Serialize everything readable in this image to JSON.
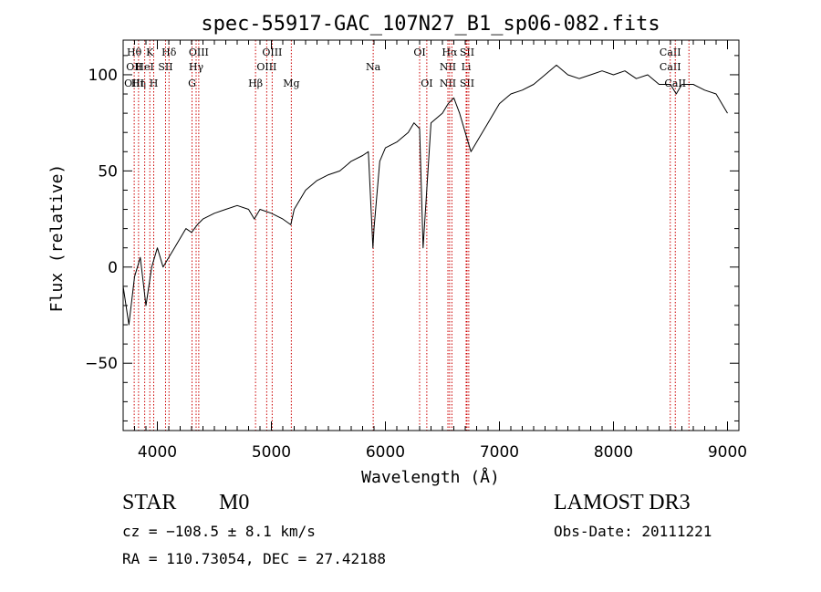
{
  "chart_data": {
    "type": "line",
    "title": "spec-55917-GAC_107N27_B1_sp06-082.fits",
    "xlabel": "Wavelength (Å)",
    "ylabel": "Flux (relative)",
    "xlim": [
      3700,
      9100
    ],
    "ylim": [
      -85,
      118
    ],
    "x_ticks": [
      4000,
      5000,
      6000,
      7000,
      8000,
      9000
    ],
    "y_ticks": [
      -50,
      0,
      50,
      100
    ],
    "grid": false,
    "series": [
      {
        "x": [
          3700,
          3750,
          3800,
          3850,
          3900,
          3950,
          4000,
          4050,
          4100,
          4150,
          4200,
          4250,
          4300,
          4350,
          4400,
          4500,
          4600,
          4700,
          4800,
          4850,
          4900,
          5000,
          5100,
          5170,
          5200,
          5300,
          5400,
          5500,
          5600,
          5700,
          5800,
          5850,
          5890,
          5900,
          5950,
          6000,
          6100,
          6200,
          6250,
          6300,
          6330,
          6400,
          6500,
          6550,
          6600,
          6650,
          6700,
          6750,
          6800,
          6900,
          7000,
          7100,
          7200,
          7300,
          7400,
          7500,
          7600,
          7700,
          7800,
          7900,
          8000,
          8100,
          8200,
          8300,
          8400,
          8500,
          8550,
          8600,
          8700,
          8800,
          8900,
          9000
        ],
        "y": [
          -10,
          -30,
          -5,
          5,
          -20,
          0,
          10,
          0,
          5,
          10,
          15,
          20,
          18,
          22,
          25,
          28,
          30,
          32,
          30,
          25,
          30,
          28,
          25,
          22,
          30,
          40,
          45,
          48,
          50,
          55,
          58,
          60,
          10,
          20,
          55,
          62,
          65,
          70,
          75,
          72,
          10,
          75,
          80,
          85,
          88,
          80,
          70,
          60,
          65,
          75,
          85,
          90,
          92,
          95,
          100,
          105,
          100,
          98,
          100,
          102,
          100,
          102,
          98,
          100,
          95,
          95,
          90,
          95,
          95,
          92,
          90,
          80
        ]
      }
    ],
    "line_markers": [
      {
        "wavelength": 3797,
        "labels": [
          "Hθ",
          "OII",
          "OIII"
        ]
      },
      {
        "wavelength": 3835,
        "labels": [
          "",
          "",
          "Hη"
        ]
      },
      {
        "wavelength": 3889,
        "labels": [
          "",
          "HeI",
          ""
        ]
      },
      {
        "wavelength": 3934,
        "labels": [
          "K",
          "",
          ""
        ]
      },
      {
        "wavelength": 3968,
        "labels": [
          "",
          "",
          "H"
        ]
      },
      {
        "wavelength": 4072,
        "labels": [
          "",
          "SII",
          ""
        ]
      },
      {
        "wavelength": 4102,
        "labels": [
          "Hδ",
          "",
          ""
        ]
      },
      {
        "wavelength": 4304,
        "labels": [
          "",
          "",
          "G"
        ]
      },
      {
        "wavelength": 4340,
        "labels": [
          "",
          "Hγ",
          ""
        ]
      },
      {
        "wavelength": 4363,
        "labels": [
          "OIII",
          "",
          ""
        ]
      },
      {
        "wavelength": 4861,
        "labels": [
          "",
          "",
          "Hβ"
        ]
      },
      {
        "wavelength": 4959,
        "labels": [
          "",
          "OIII",
          ""
        ]
      },
      {
        "wavelength": 5007,
        "labels": [
          "OIII",
          "",
          ""
        ]
      },
      {
        "wavelength": 5175,
        "labels": [
          "",
          "",
          "Mg"
        ]
      },
      {
        "wavelength": 5893,
        "labels": [
          "",
          "Na",
          ""
        ]
      },
      {
        "wavelength": 6300,
        "labels": [
          "OI",
          "",
          ""
        ]
      },
      {
        "wavelength": 6363,
        "labels": [
          "",
          "",
          "OI"
        ]
      },
      {
        "wavelength": 6548,
        "labels": [
          "",
          "NII",
          "NII"
        ]
      },
      {
        "wavelength": 6563,
        "labels": [
          "Hα",
          "",
          ""
        ]
      },
      {
        "wavelength": 6583,
        "labels": [
          "",
          "",
          ""
        ]
      },
      {
        "wavelength": 6708,
        "labels": [
          "",
          "Li",
          ""
        ]
      },
      {
        "wavelength": 6716,
        "labels": [
          "SII",
          "",
          "SII"
        ]
      },
      {
        "wavelength": 6731,
        "labels": [
          "",
          "",
          ""
        ]
      },
      {
        "wavelength": 8498,
        "labels": [
          "CaII",
          "CaII",
          ""
        ]
      },
      {
        "wavelength": 8542,
        "labels": [
          "",
          "",
          "CaII"
        ]
      },
      {
        "wavelength": 8662,
        "labels": [
          "",
          "",
          ""
        ]
      }
    ],
    "colors": {
      "spectrum": "#000000",
      "marker": "#cc0000"
    }
  },
  "info": {
    "class_label": "STAR",
    "subclass_label": "M0",
    "survey_label": "LAMOST DR3",
    "cz_text": "cz = −108.5 ± 8.1 km/s",
    "obsdate_text": "Obs-Date: 20111221",
    "radec_text": "RA = 110.73054, DEC =  27.42188"
  }
}
